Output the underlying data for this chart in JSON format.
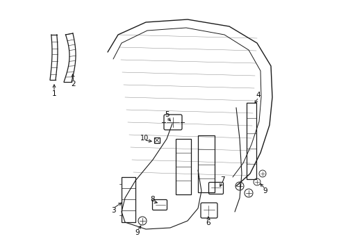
{
  "bg_color": "#ffffff",
  "line_color": "#1a1a1a",
  "label_color": "#000000",
  "figsize": [
    4.89,
    3.6
  ],
  "dpi": 100,
  "lw": 0.9
}
